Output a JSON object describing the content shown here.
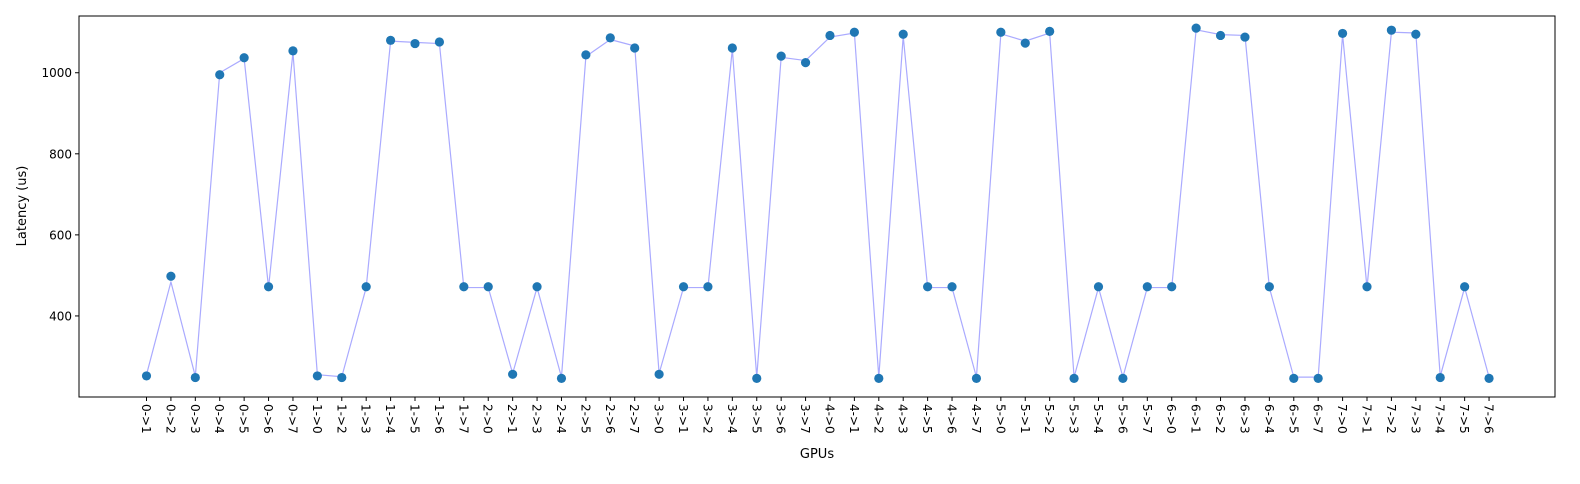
{
  "chart_data": {
    "type": "scatter",
    "title": "",
    "xlabel": "GPUs",
    "ylabel": "Latency (us)",
    "ylim": [
      200,
      1140
    ],
    "y_ticks": [
      400,
      600,
      800,
      1000
    ],
    "grid": false,
    "legend": "none",
    "categories": [
      "0->1",
      "0->2",
      "0->3",
      "0->4",
      "0->5",
      "0->6",
      "0->7",
      "1->0",
      "1->2",
      "1->3",
      "1->4",
      "1->5",
      "1->6",
      "1->7",
      "2->0",
      "2->1",
      "2->3",
      "2->4",
      "2->5",
      "2->6",
      "2->7",
      "3->0",
      "3->1",
      "3->2",
      "3->4",
      "3->5",
      "3->6",
      "3->7",
      "4->0",
      "4->1",
      "4->2",
      "4->3",
      "4->5",
      "4->6",
      "4->7",
      "5->0",
      "5->1",
      "5->2",
      "5->3",
      "5->4",
      "5->6",
      "5->7",
      "6->0",
      "6->1",
      "6->2",
      "6->3",
      "6->4",
      "6->5",
      "6->7",
      "7->0",
      "7->1",
      "7->2",
      "7->3",
      "7->4",
      "7->5",
      "7->6"
    ],
    "series": [
      {
        "values": [
          252,
          498,
          248,
          995,
          1037,
          472,
          1054,
          252,
          248,
          472,
          1080,
          1072,
          1076,
          472,
          472,
          256,
          472,
          246,
          1044,
          1086,
          1061,
          256,
          472,
          472,
          1061,
          246,
          1041,
          1025,
          1092,
          1100,
          246,
          1095,
          472,
          472,
          246,
          1100,
          1073,
          1102,
          246,
          472,
          246,
          472,
          472,
          1110,
          1092,
          1088,
          472,
          246,
          246,
          1097,
          472,
          1105,
          1095,
          248,
          472,
          246
        ],
        "marker_color": "#1f77b4"
      },
      {
        "values": [
          255,
          484,
          251,
          1000,
          1035,
          470,
          1050,
          255,
          250,
          470,
          1078,
          1075,
          1072,
          470,
          470,
          258,
          470,
          249,
          1040,
          1082,
          1066,
          258,
          470,
          470,
          1058,
          249,
          1038,
          1030,
          1088,
          1098,
          249,
          1090,
          470,
          470,
          249,
          1096,
          1078,
          1098,
          249,
          470,
          249,
          470,
          470,
          1106,
          1094,
          1092,
          470,
          249,
          249,
          1094,
          470,
          1100,
          1098,
          251,
          470,
          249
        ],
        "line_color": "#aaaaff"
      }
    ]
  }
}
